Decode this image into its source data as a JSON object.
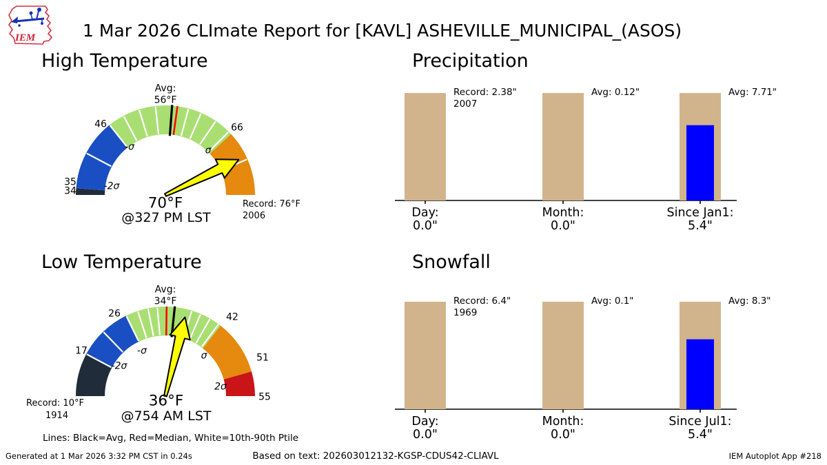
{
  "header": {
    "title": "1 Mar 2026 CLImate Report for [KAVL] ASHEVILLE_MUNICIPAL_(ASOS)",
    "logo_text": "IEM"
  },
  "legend_note": "Lines: Black=Avg, Red=Median, White=10th-90th Ptile",
  "footer": {
    "generated": "Generated at 1 Mar 2026 3:32 PM CST in 0.24s",
    "source": "Based on text: 202603012132-KGSP-CDUS42-CLIAVL",
    "app": "IEM Autoplot App #218"
  },
  "colors": {
    "below_2sigma": "#202c3a",
    "sigma_blue": "#1a4fc3",
    "normal_green": "#a9df72",
    "sigma_orange": "#e5890f",
    "above_2sigma_red": "#c91418",
    "reference_bar_tan": "#d2b48c",
    "actual_bar_blue": "#0000ff",
    "needle_yellow": "#ffff00",
    "avg_line": "#000000",
    "median_line": "#ff0000",
    "percentile_line": "#ffffff",
    "logo_red": "#cc2233",
    "logo_blue": "#1531b8"
  },
  "chart_data": [
    {
      "type": "gauge",
      "title": "High Temperature",
      "min": 34,
      "max": 76,
      "value": 70,
      "value_label": "70°F",
      "time_label": "@327 PM LST",
      "avg": 56,
      "avg_label": [
        "Avg:",
        "56°F"
      ],
      "median": 56.8,
      "record_label": [
        "Record: 76°F",
        "2006"
      ],
      "zones": [
        {
          "from": 34,
          "to": 35,
          "color_key": "below_2sigma"
        },
        {
          "from": 35,
          "to": 46,
          "color_key": "sigma_blue"
        },
        {
          "from": 46,
          "to": 66,
          "color_key": "normal_green"
        },
        {
          "from": 66,
          "to": 76,
          "color_key": "sigma_orange"
        }
      ],
      "percentile_lines": [
        40.5,
        46,
        48.5,
        51,
        53.5,
        58.5,
        60.5,
        63,
        65.5,
        70.5
      ],
      "tick_labels": [
        "35",
        "34",
        "46",
        "66"
      ],
      "sigma_labels": [
        "-2σ",
        "-σ",
        "σ"
      ]
    },
    {
      "type": "gauge",
      "title": "Low Temperature",
      "min": 10,
      "max": 55,
      "value": 36,
      "value_label": "36°F",
      "time_label": "@754 AM LST",
      "avg": 34,
      "avg_label": [
        "Avg:",
        "34°F"
      ],
      "median": 32.7,
      "record_label": [
        "Record: 10°F",
        "1914"
      ],
      "zones": [
        {
          "from": 10,
          "to": 17,
          "color_key": "below_2sigma"
        },
        {
          "from": 17,
          "to": 26,
          "color_key": "sigma_blue"
        },
        {
          "from": 26,
          "to": 42,
          "color_key": "normal_green"
        },
        {
          "from": 42,
          "to": 51,
          "color_key": "sigma_orange"
        },
        {
          "from": 51,
          "to": 55,
          "color_key": "above_2sigma_red"
        }
      ],
      "percentile_lines": [
        17,
        21.5,
        26,
        28,
        29.7,
        31.2,
        36.8,
        38.3,
        40,
        41.6
      ],
      "tick_labels": [
        "17",
        "26",
        "42",
        "51",
        "55"
      ],
      "sigma_labels": [
        "-2σ",
        "-σ",
        "σ",
        "2σ"
      ]
    },
    {
      "type": "bar",
      "title": "Precipitation",
      "unit": "inches",
      "groups": [
        {
          "label": "Day:",
          "value_label": "0.0\"",
          "value": 0.0,
          "reference": 2.38,
          "annotation": [
            "Record: 2.38\"",
            "2007"
          ]
        },
        {
          "label": "Month:",
          "value_label": "0.0\"",
          "value": 0.0,
          "reference": 0.12,
          "annotation": [
            "Avg: 0.12\""
          ]
        },
        {
          "label": "Since Jan1:",
          "value_label": "5.4\"",
          "value": 5.4,
          "reference": 7.71,
          "annotation": [
            "Avg: 7.71\""
          ]
        }
      ]
    },
    {
      "type": "bar",
      "title": "Snowfall",
      "unit": "inches",
      "groups": [
        {
          "label": "Day:",
          "value_label": "0.0\"",
          "value": 0.0,
          "reference": 6.4,
          "annotation": [
            "Record: 6.4\"",
            "1969"
          ]
        },
        {
          "label": "Month:",
          "value_label": "0.0\"",
          "value": 0.0,
          "reference": 0.1,
          "annotation": [
            "Avg: 0.1\""
          ]
        },
        {
          "label": "Since Jul1:",
          "value_label": "5.4\"",
          "value": 5.4,
          "reference": 8.3,
          "annotation": [
            "Avg: 8.3\""
          ]
        }
      ]
    }
  ]
}
